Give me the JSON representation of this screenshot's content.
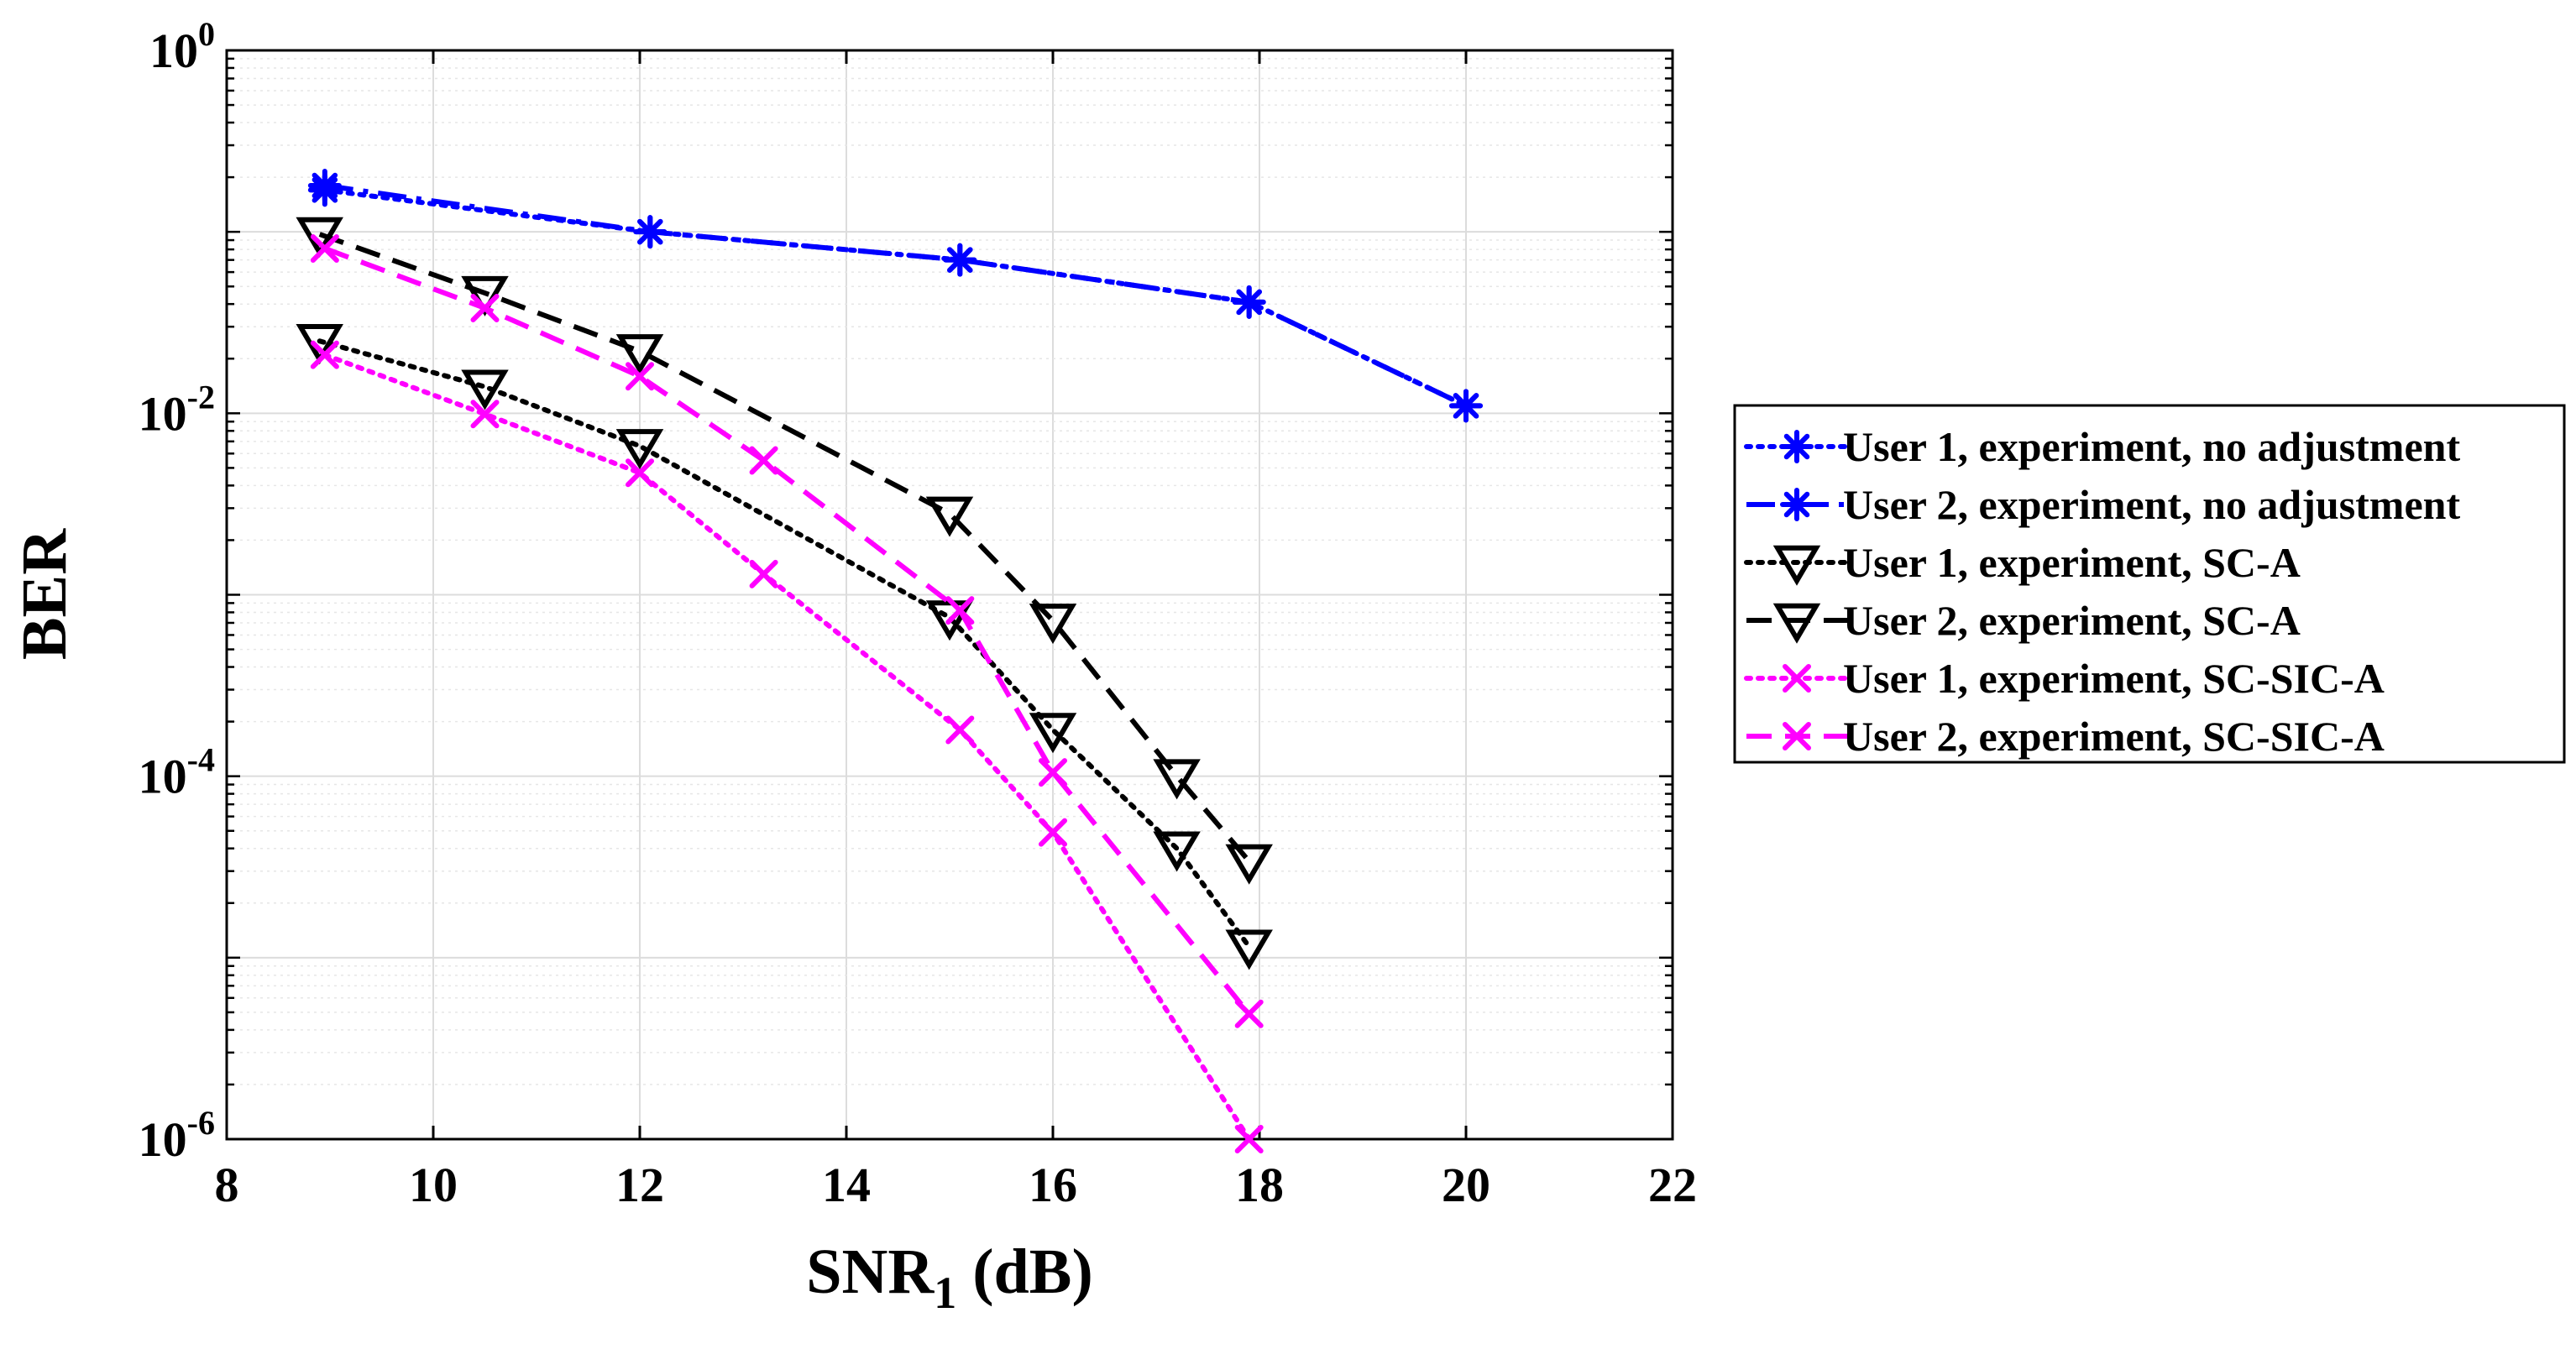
{
  "chart_data": {
    "type": "line",
    "title": "",
    "xlabel": "SNR",
    "xlabel_subscript": "1",
    "xlabel_unit": " (dB)",
    "ylabel": "BER",
    "xlim": [
      8,
      22
    ],
    "ylim": [
      1e-06,
      1
    ],
    "yscale": "log",
    "grid": true,
    "legend_position": "outside-right",
    "x_ticks": [
      8,
      10,
      12,
      14,
      16,
      18,
      20,
      22
    ],
    "y_ticks": [
      {
        "base": "10",
        "exp": "0",
        "value": 1
      },
      {
        "base": "10",
        "exp": "-2",
        "value": 0.01
      },
      {
        "base": "10",
        "exp": "-4",
        "value": 0.0001
      },
      {
        "base": "10",
        "exp": "-6",
        "value": 1e-06
      }
    ],
    "series": [
      {
        "name": "User 1, experiment, no adjustment",
        "color": "#0000ff",
        "dash": "dotted",
        "marker": "asterisk",
        "x": [
          8.95,
          12.1,
          15.1,
          17.9,
          20.0
        ],
        "y": [
          0.17,
          0.1,
          0.07,
          0.041,
          0.011
        ]
      },
      {
        "name": "User 2, experiment, no adjustment",
        "color": "#0000ff",
        "dash": "dashdot",
        "marker": "asterisk",
        "x": [
          8.95,
          12.1,
          15.1,
          17.9,
          20.0
        ],
        "y": [
          0.18,
          0.1,
          0.07,
          0.041,
          0.011
        ]
      },
      {
        "name": "User 1, experiment, SC-A",
        "color": "#000000",
        "dash": "dotted",
        "marker": "triangle-down",
        "x": [
          8.9,
          10.5,
          12.0,
          15.0,
          16.0,
          17.2,
          17.9
        ],
        "y": [
          0.025,
          0.014,
          0.0066,
          0.00075,
          0.00018,
          4e-05,
          1.15e-05
        ]
      },
      {
        "name": "User 2, experiment, SC-A",
        "color": "#000000",
        "dash": "dashed",
        "marker": "triangle-down",
        "x": [
          8.9,
          10.5,
          12.0,
          15.0,
          16.0,
          17.2,
          17.9
        ],
        "y": [
          0.097,
          0.046,
          0.022,
          0.0028,
          0.00072,
          0.0001,
          3.4e-05
        ]
      },
      {
        "name": "User 1, experiment, SC-SIC-A",
        "color": "#ff00ff",
        "dash": "dotted",
        "marker": "x",
        "x": [
          8.95,
          10.5,
          12.0,
          13.2,
          15.1,
          16.0,
          17.9
        ],
        "y": [
          0.021,
          0.0099,
          0.0047,
          0.0013,
          0.00018,
          4.9e-05,
          1e-06
        ]
      },
      {
        "name": "User 2, experiment, SC-SIC-A",
        "color": "#ff00ff",
        "dash": "dashed",
        "marker": "x",
        "x": [
          8.95,
          10.5,
          12.0,
          13.2,
          15.1,
          16.0,
          17.9
        ],
        "y": [
          0.081,
          0.038,
          0.016,
          0.0055,
          0.00082,
          0.000105,
          4.9e-06
        ]
      }
    ]
  }
}
